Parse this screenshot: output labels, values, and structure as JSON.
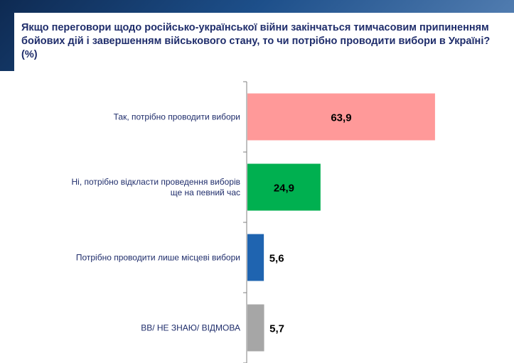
{
  "title": "Якщо переговори щодо російсько-української війни закінчаться тимчасовим припиненням бойових дій і завершенням військового стану, то чи потрібно проводити вибори в Україні? (%)",
  "chart_data": {
    "type": "bar",
    "orientation": "horizontal",
    "title": "Якщо переговори щодо російсько-української війни закінчаться тимчасовим припиненням бойових дій і завершенням військового стану, то чи потрібно проводити вибори в Україні? (%)",
    "categories": [
      "Так, потрібно проводити вибори",
      "Ні, потрібно відкласти проведення виборів ще на певний час",
      "Потрібно проводити лише місцеві вибори",
      "ВВ/ НЕ ЗНАЮ/ ВІДМОВА"
    ],
    "values": [
      63.9,
      24.9,
      5.6,
      5.7
    ],
    "value_labels": [
      "63,9",
      "24,9",
      "5,6",
      "5,7"
    ],
    "colors": [
      "#ff9999",
      "#00b050",
      "#1f64b0",
      "#a6a6a6"
    ],
    "xlim": [
      0,
      100
    ],
    "grid": false
  }
}
